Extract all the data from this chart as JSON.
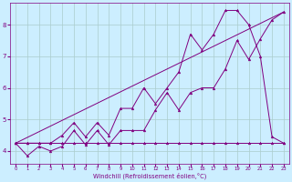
{
  "xlabel": "Windchill (Refroidissement éolien,°C)",
  "background_color": "#cceeff",
  "line_color": "#800080",
  "grid_color": "#aacccc",
  "xlim": [
    -0.5,
    23.5
  ],
  "ylim": [
    3.6,
    8.7
  ],
  "xticks": [
    0,
    1,
    2,
    3,
    4,
    5,
    6,
    7,
    8,
    9,
    10,
    11,
    12,
    13,
    14,
    15,
    16,
    17,
    18,
    19,
    20,
    21,
    22,
    23
  ],
  "yticks": [
    4,
    5,
    6,
    7,
    8
  ],
  "series_flat_x": [
    0,
    1,
    2,
    3,
    4,
    5,
    6,
    7,
    8,
    9,
    10,
    11,
    12,
    13,
    14,
    15,
    16,
    17,
    18,
    19,
    20,
    21,
    22,
    23
  ],
  "series_flat_y": [
    4.25,
    4.25,
    4.25,
    4.25,
    4.25,
    4.25,
    4.25,
    4.25,
    4.25,
    4.25,
    4.25,
    4.25,
    4.25,
    4.25,
    4.25,
    4.25,
    4.25,
    4.25,
    4.25,
    4.25,
    4.25,
    4.25,
    4.25,
    4.25
  ],
  "series_zigzag_x": [
    0,
    1,
    2,
    3,
    4,
    5,
    6,
    7,
    8,
    9,
    10,
    11,
    12,
    13,
    14,
    15,
    16,
    17,
    18,
    19,
    20,
    21,
    22,
    23
  ],
  "series_zigzag_y": [
    4.25,
    3.85,
    4.15,
    4.0,
    4.15,
    4.65,
    4.2,
    4.65,
    4.2,
    4.65,
    4.65,
    4.65,
    5.3,
    5.85,
    5.3,
    5.85,
    6.0,
    6.0,
    6.6,
    7.5,
    6.9,
    7.55,
    8.15,
    8.4
  ],
  "series_zigzag2_x": [
    0,
    1,
    2,
    3,
    4,
    5,
    6,
    7,
    8,
    9,
    10,
    11,
    12,
    13,
    14,
    15,
    16,
    17,
    18,
    19,
    20,
    21,
    22,
    23
  ],
  "series_zigzag2_y": [
    4.25,
    4.25,
    4.25,
    4.25,
    4.5,
    4.9,
    4.45,
    4.9,
    4.5,
    5.35,
    5.35,
    6.0,
    5.5,
    6.0,
    6.5,
    7.7,
    7.2,
    7.7,
    8.45,
    8.45,
    8.0,
    7.0,
    4.45,
    4.25
  ],
  "series_trend_x": [
    0,
    23
  ],
  "series_trend_y": [
    4.25,
    8.4
  ]
}
